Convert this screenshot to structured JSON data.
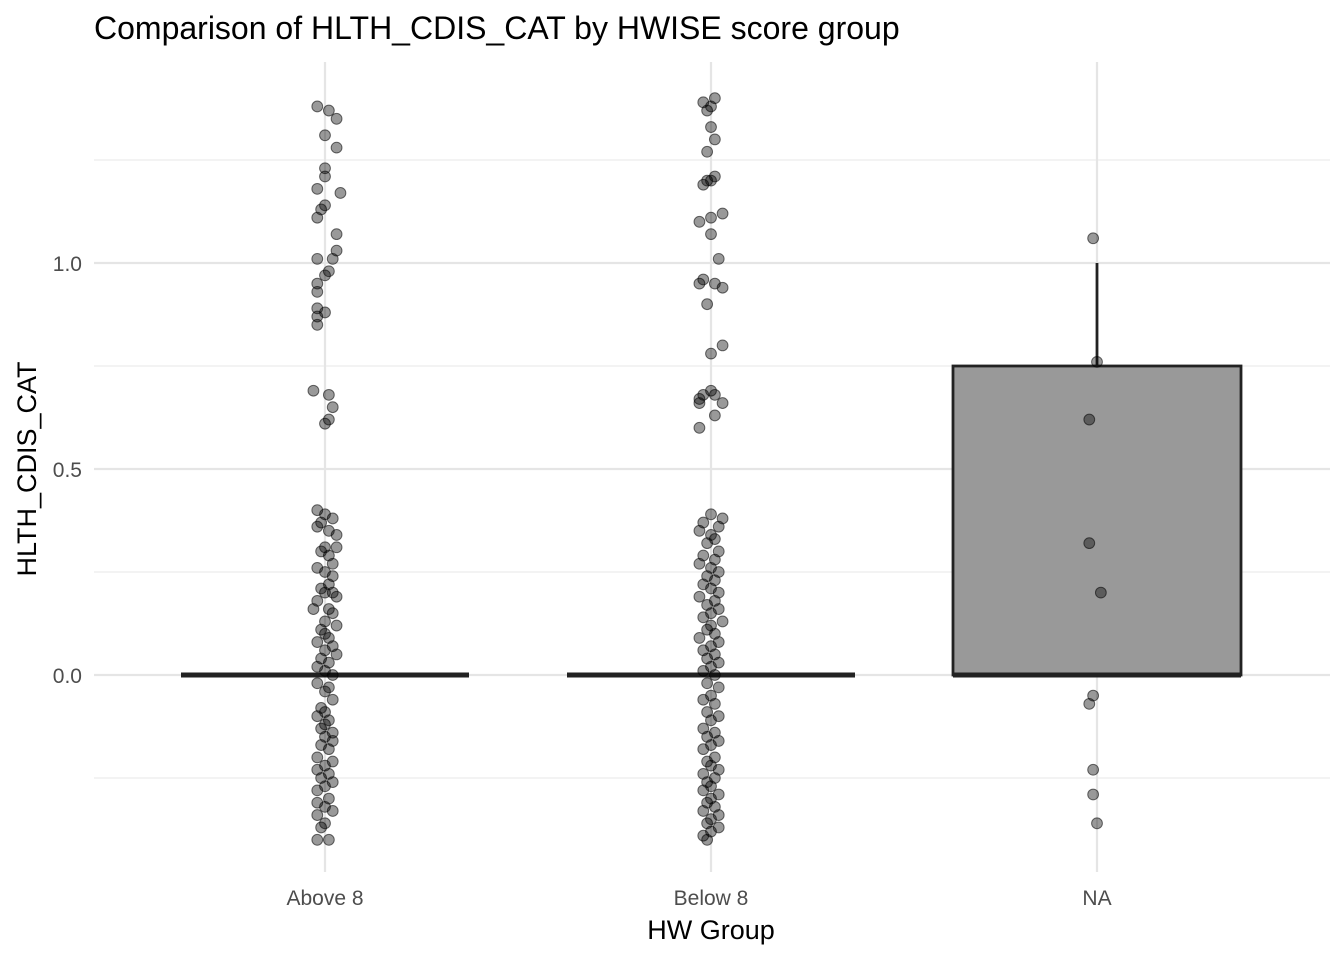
{
  "chart_data": {
    "type": "box",
    "title": "Comparison of HLTH_CDIS_CAT by HWISE score group",
    "xlabel": "HW Group",
    "ylabel": "HLTH_CDIS_CAT",
    "categories": [
      "Above 8",
      "Below 8",
      "NA"
    ],
    "ylim": [
      -0.48,
      1.5
    ],
    "y_ticks": [
      0.0,
      0.5,
      1.0
    ],
    "y_tick_labels": [
      "0.0",
      "0.5",
      "1.0"
    ],
    "grid": true,
    "colors": {
      "box_fill": "#999999",
      "box_line": "#222222",
      "point": "#000000",
      "grid": "#e5e5e5"
    },
    "boxes": [
      {
        "category": "Above 8",
        "min": 0,
        "q1": 0,
        "median": 0,
        "q3": 0,
        "max": 0
      },
      {
        "category": "Below 8",
        "min": 0,
        "q1": 0,
        "median": 0,
        "q3": 0,
        "max": 0
      },
      {
        "category": "NA",
        "min": 0,
        "q1": 0,
        "median": 0,
        "q3": 0.75,
        "max": 1.0
      }
    ],
    "points": {
      "Above 8": [
        [
          -0.02,
          1.38
        ],
        [
          0.01,
          1.37
        ],
        [
          0.03,
          1.35
        ],
        [
          0.0,
          1.31
        ],
        [
          0.03,
          1.28
        ],
        [
          0.0,
          1.23
        ],
        [
          0.0,
          1.21
        ],
        [
          0.04,
          1.17
        ],
        [
          -0.02,
          1.18
        ],
        [
          0.0,
          1.14
        ],
        [
          -0.01,
          1.13
        ],
        [
          -0.02,
          1.11
        ],
        [
          0.03,
          1.07
        ],
        [
          0.03,
          1.03
        ],
        [
          -0.02,
          1.01
        ],
        [
          0.02,
          1.01
        ],
        [
          0.01,
          0.98
        ],
        [
          0.0,
          0.97
        ],
        [
          -0.02,
          0.95
        ],
        [
          -0.02,
          0.93
        ],
        [
          -0.02,
          0.89
        ],
        [
          0.0,
          0.88
        ],
        [
          -0.02,
          0.87
        ],
        [
          -0.02,
          0.85
        ],
        [
          -0.03,
          0.69
        ],
        [
          0.01,
          0.68
        ],
        [
          0.02,
          0.65
        ],
        [
          0.01,
          0.62
        ],
        [
          0.0,
          0.61
        ],
        [
          -0.02,
          0.4
        ],
        [
          0.0,
          0.39
        ],
        [
          0.02,
          0.38
        ],
        [
          -0.01,
          0.37
        ],
        [
          0.01,
          0.35
        ],
        [
          0.03,
          0.34
        ],
        [
          -0.02,
          0.36
        ],
        [
          0.0,
          0.31
        ],
        [
          0.03,
          0.31
        ],
        [
          -0.01,
          0.3
        ],
        [
          0.01,
          0.29
        ],
        [
          0.02,
          0.27
        ],
        [
          -0.02,
          0.26
        ],
        [
          0.0,
          0.25
        ],
        [
          0.02,
          0.24
        ],
        [
          0.01,
          0.22
        ],
        [
          -0.01,
          0.21
        ],
        [
          0.0,
          0.2
        ],
        [
          0.02,
          0.2
        ],
        [
          0.03,
          0.19
        ],
        [
          -0.02,
          0.18
        ],
        [
          0.01,
          0.16
        ],
        [
          -0.03,
          0.16
        ],
        [
          0.02,
          0.15
        ],
        [
          0.0,
          0.13
        ],
        [
          0.03,
          0.12
        ],
        [
          -0.01,
          0.11
        ],
        [
          0.0,
          0.1
        ],
        [
          0.01,
          0.09
        ],
        [
          -0.02,
          0.08
        ],
        [
          0.02,
          0.07
        ],
        [
          0.0,
          0.06
        ],
        [
          0.03,
          0.05
        ],
        [
          -0.01,
          0.04
        ],
        [
          0.01,
          0.03
        ],
        [
          -0.02,
          0.02
        ],
        [
          0.0,
          0.01
        ],
        [
          0.02,
          0.0
        ],
        [
          -0.02,
          -0.02
        ],
        [
          0.01,
          -0.03
        ],
        [
          0.0,
          -0.04
        ],
        [
          0.02,
          -0.06
        ],
        [
          -0.01,
          -0.08
        ],
        [
          0.0,
          -0.09
        ],
        [
          -0.02,
          -0.1
        ],
        [
          0.01,
          -0.11
        ],
        [
          0.0,
          -0.12
        ],
        [
          -0.01,
          -0.13
        ],
        [
          0.02,
          -0.14
        ],
        [
          0.0,
          -0.15
        ],
        [
          0.02,
          -0.16
        ],
        [
          -0.01,
          -0.17
        ],
        [
          0.01,
          -0.18
        ],
        [
          -0.02,
          -0.2
        ],
        [
          0.02,
          -0.21
        ],
        [
          0.0,
          -0.22
        ],
        [
          -0.02,
          -0.23
        ],
        [
          0.01,
          -0.24
        ],
        [
          -0.01,
          -0.25
        ],
        [
          0.02,
          -0.26
        ],
        [
          0.0,
          -0.27
        ],
        [
          -0.02,
          -0.28
        ],
        [
          0.01,
          -0.3
        ],
        [
          -0.02,
          -0.31
        ],
        [
          0.0,
          -0.32
        ],
        [
          0.02,
          -0.33
        ],
        [
          -0.02,
          -0.34
        ],
        [
          0.0,
          -0.36
        ],
        [
          -0.01,
          -0.37
        ],
        [
          -0.02,
          -0.4
        ],
        [
          0.01,
          -0.4
        ]
      ],
      "Below 8": [
        [
          -0.02,
          1.39
        ],
        [
          0.0,
          1.38
        ],
        [
          0.01,
          1.4
        ],
        [
          -0.01,
          1.37
        ],
        [
          0.0,
          1.33
        ],
        [
          0.01,
          1.3
        ],
        [
          -0.01,
          1.27
        ],
        [
          0.0,
          1.2
        ],
        [
          0.01,
          1.21
        ],
        [
          -0.02,
          1.19
        ],
        [
          -0.01,
          1.2
        ],
        [
          0.03,
          1.12
        ],
        [
          -0.03,
          1.1
        ],
        [
          0.0,
          1.11
        ],
        [
          0.0,
          1.07
        ],
        [
          0.02,
          1.01
        ],
        [
          -0.02,
          0.96
        ],
        [
          -0.03,
          0.95
        ],
        [
          0.01,
          0.95
        ],
        [
          0.03,
          0.94
        ],
        [
          -0.01,
          0.9
        ],
        [
          0.03,
          0.8
        ],
        [
          0.0,
          0.78
        ],
        [
          -0.02,
          0.68
        ],
        [
          0.0,
          0.69
        ],
        [
          -0.03,
          0.67
        ],
        [
          0.01,
          0.68
        ],
        [
          -0.03,
          0.66
        ],
        [
          0.03,
          0.66
        ],
        [
          0.01,
          0.63
        ],
        [
          -0.03,
          0.6
        ],
        [
          0.0,
          0.39
        ],
        [
          0.03,
          0.38
        ],
        [
          -0.02,
          0.37
        ],
        [
          0.02,
          0.36
        ],
        [
          -0.03,
          0.35
        ],
        [
          0.0,
          0.34
        ],
        [
          0.01,
          0.33
        ],
        [
          -0.01,
          0.32
        ],
        [
          0.02,
          0.3
        ],
        [
          -0.02,
          0.29
        ],
        [
          0.01,
          0.28
        ],
        [
          -0.03,
          0.27
        ],
        [
          0.0,
          0.26
        ],
        [
          0.02,
          0.25
        ],
        [
          -0.01,
          0.24
        ],
        [
          0.01,
          0.23
        ],
        [
          -0.02,
          0.22
        ],
        [
          0.0,
          0.21
        ],
        [
          0.02,
          0.2
        ],
        [
          -0.03,
          0.19
        ],
        [
          0.01,
          0.18
        ],
        [
          -0.01,
          0.17
        ],
        [
          0.02,
          0.16
        ],
        [
          0.0,
          0.15
        ],
        [
          -0.02,
          0.14
        ],
        [
          0.03,
          0.13
        ],
        [
          0.0,
          0.12
        ],
        [
          -0.01,
          0.11
        ],
        [
          0.01,
          0.1
        ],
        [
          -0.03,
          0.09
        ],
        [
          0.02,
          0.08
        ],
        [
          0.0,
          0.07
        ],
        [
          -0.02,
          0.06
        ],
        [
          0.01,
          0.05
        ],
        [
          -0.01,
          0.04
        ],
        [
          0.02,
          0.03
        ],
        [
          0.0,
          0.02
        ],
        [
          -0.02,
          0.01
        ],
        [
          0.01,
          0.0
        ],
        [
          -0.01,
          -0.02
        ],
        [
          0.02,
          -0.03
        ],
        [
          0.0,
          -0.05
        ],
        [
          -0.02,
          -0.06
        ],
        [
          0.01,
          -0.07
        ],
        [
          -0.01,
          -0.09
        ],
        [
          0.02,
          -0.1
        ],
        [
          0.0,
          -0.11
        ],
        [
          -0.02,
          -0.13
        ],
        [
          0.01,
          -0.14
        ],
        [
          -0.01,
          -0.15
        ],
        [
          0.02,
          -0.16
        ],
        [
          0.0,
          -0.17
        ],
        [
          -0.02,
          -0.18
        ],
        [
          0.01,
          -0.2
        ],
        [
          -0.01,
          -0.21
        ],
        [
          0.0,
          -0.22
        ],
        [
          0.02,
          -0.23
        ],
        [
          -0.02,
          -0.24
        ],
        [
          0.01,
          -0.25
        ],
        [
          -0.01,
          -0.26
        ],
        [
          0.0,
          -0.27
        ],
        [
          -0.02,
          -0.28
        ],
        [
          0.02,
          -0.29
        ],
        [
          0.0,
          -0.3
        ],
        [
          -0.01,
          -0.31
        ],
        [
          0.01,
          -0.32
        ],
        [
          -0.02,
          -0.33
        ],
        [
          0.02,
          -0.34
        ],
        [
          0.0,
          -0.35
        ],
        [
          -0.01,
          -0.36
        ],
        [
          0.02,
          -0.37
        ],
        [
          0.0,
          -0.38
        ],
        [
          -0.02,
          -0.39
        ],
        [
          -0.01,
          -0.4
        ]
      ],
      "NA": [
        [
          -0.01,
          1.06
        ],
        [
          0.0,
          0.76
        ],
        [
          -0.02,
          0.62
        ],
        [
          -0.02,
          0.32
        ],
        [
          0.01,
          0.2
        ],
        [
          -0.01,
          -0.05
        ],
        [
          -0.02,
          -0.07
        ],
        [
          -0.01,
          -0.23
        ],
        [
          -0.01,
          -0.29
        ],
        [
          0.0,
          -0.36
        ]
      ]
    }
  }
}
